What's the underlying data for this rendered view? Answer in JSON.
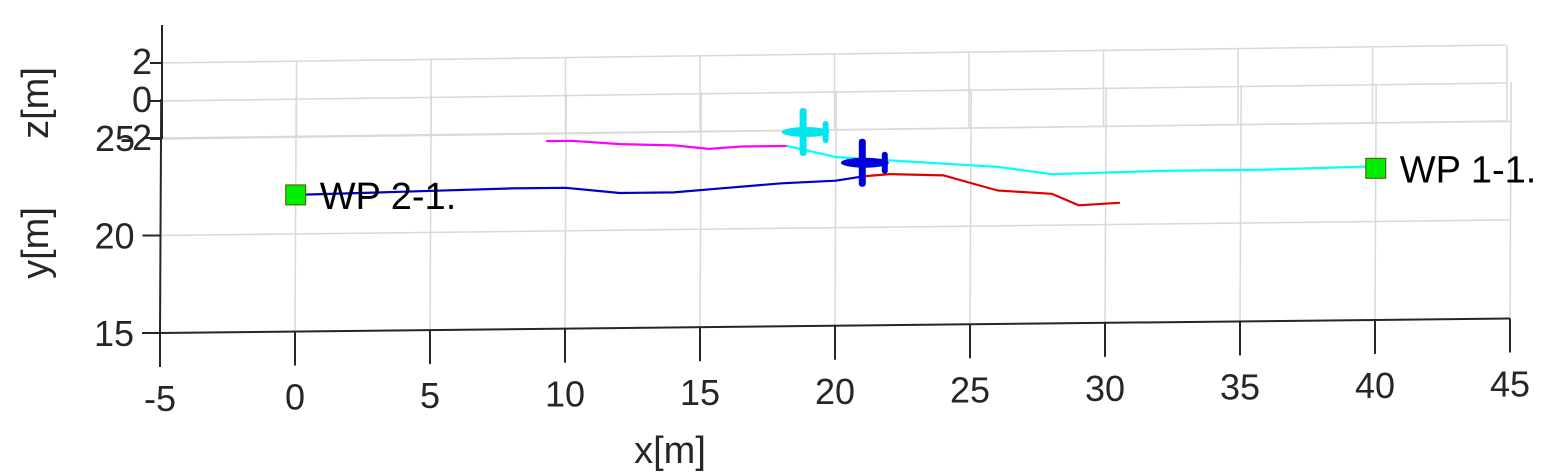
{
  "chart_data": {
    "type": "line",
    "view": "3d",
    "title": "",
    "xlabel": "x[m]",
    "ylabel": "y[m]",
    "zlabel": "z[m]",
    "xlim": [
      -5,
      45
    ],
    "ylim": [
      15,
      27
    ],
    "zlim": [
      -2,
      2
    ],
    "x_ticks": [
      "-5",
      "0",
      "5",
      "10",
      "15",
      "20",
      "25",
      "30",
      "35",
      "40",
      "45"
    ],
    "y_ticks": [
      "15",
      "20",
      "25"
    ],
    "z_ticks": [
      "-2",
      "0",
      "2"
    ],
    "grid": true,
    "colors": {
      "magenta": "#ff00ff",
      "cyan": "#00ffff",
      "blue": "#0000cc",
      "red": "#e00000",
      "waypoint": "#00ee00",
      "aircraft_1": "#00e5ee",
      "aircraft_2": "#0000dd"
    },
    "waypoints": [
      {
        "label": "WP 2-1.",
        "x": 0,
        "y": 22
      },
      {
        "label": "WP 1-1.",
        "x": 40,
        "y": 22.7
      }
    ],
    "series": [
      {
        "color": "magenta",
        "x": [
          9.3,
          10.2,
          12,
          14,
          15.3,
          16.5,
          18.2
        ],
        "y": [
          24.6,
          24.6,
          24.4,
          24.3,
          24.1,
          24.2,
          24.2
        ]
      },
      {
        "color": "cyan",
        "x": [
          18.2,
          20,
          22,
          24,
          26,
          28,
          32,
          36,
          40
        ],
        "y": [
          24.2,
          23.6,
          23.4,
          23.2,
          23.0,
          22.6,
          22.7,
          22.7,
          22.8
        ]
      },
      {
        "color": "blue",
        "x": [
          0,
          4,
          8,
          10,
          12,
          14,
          16,
          18,
          20,
          21
        ],
        "y": [
          22,
          22.1,
          22.2,
          22.2,
          21.9,
          21.9,
          22.1,
          22.3,
          22.4,
          22.6
        ]
      },
      {
        "color": "red",
        "x": [
          21,
          22,
          24,
          25,
          26,
          28,
          29,
          30.5
        ],
        "y": [
          22.6,
          22.7,
          22.6,
          22.2,
          21.8,
          21.6,
          21.0,
          21.1
        ]
      }
    ],
    "aircraft": [
      {
        "color": "aircraft_1",
        "x": 18.8,
        "y": 24.9
      },
      {
        "color": "aircraft_2",
        "x": 21.0,
        "y": 23.3
      }
    ]
  }
}
